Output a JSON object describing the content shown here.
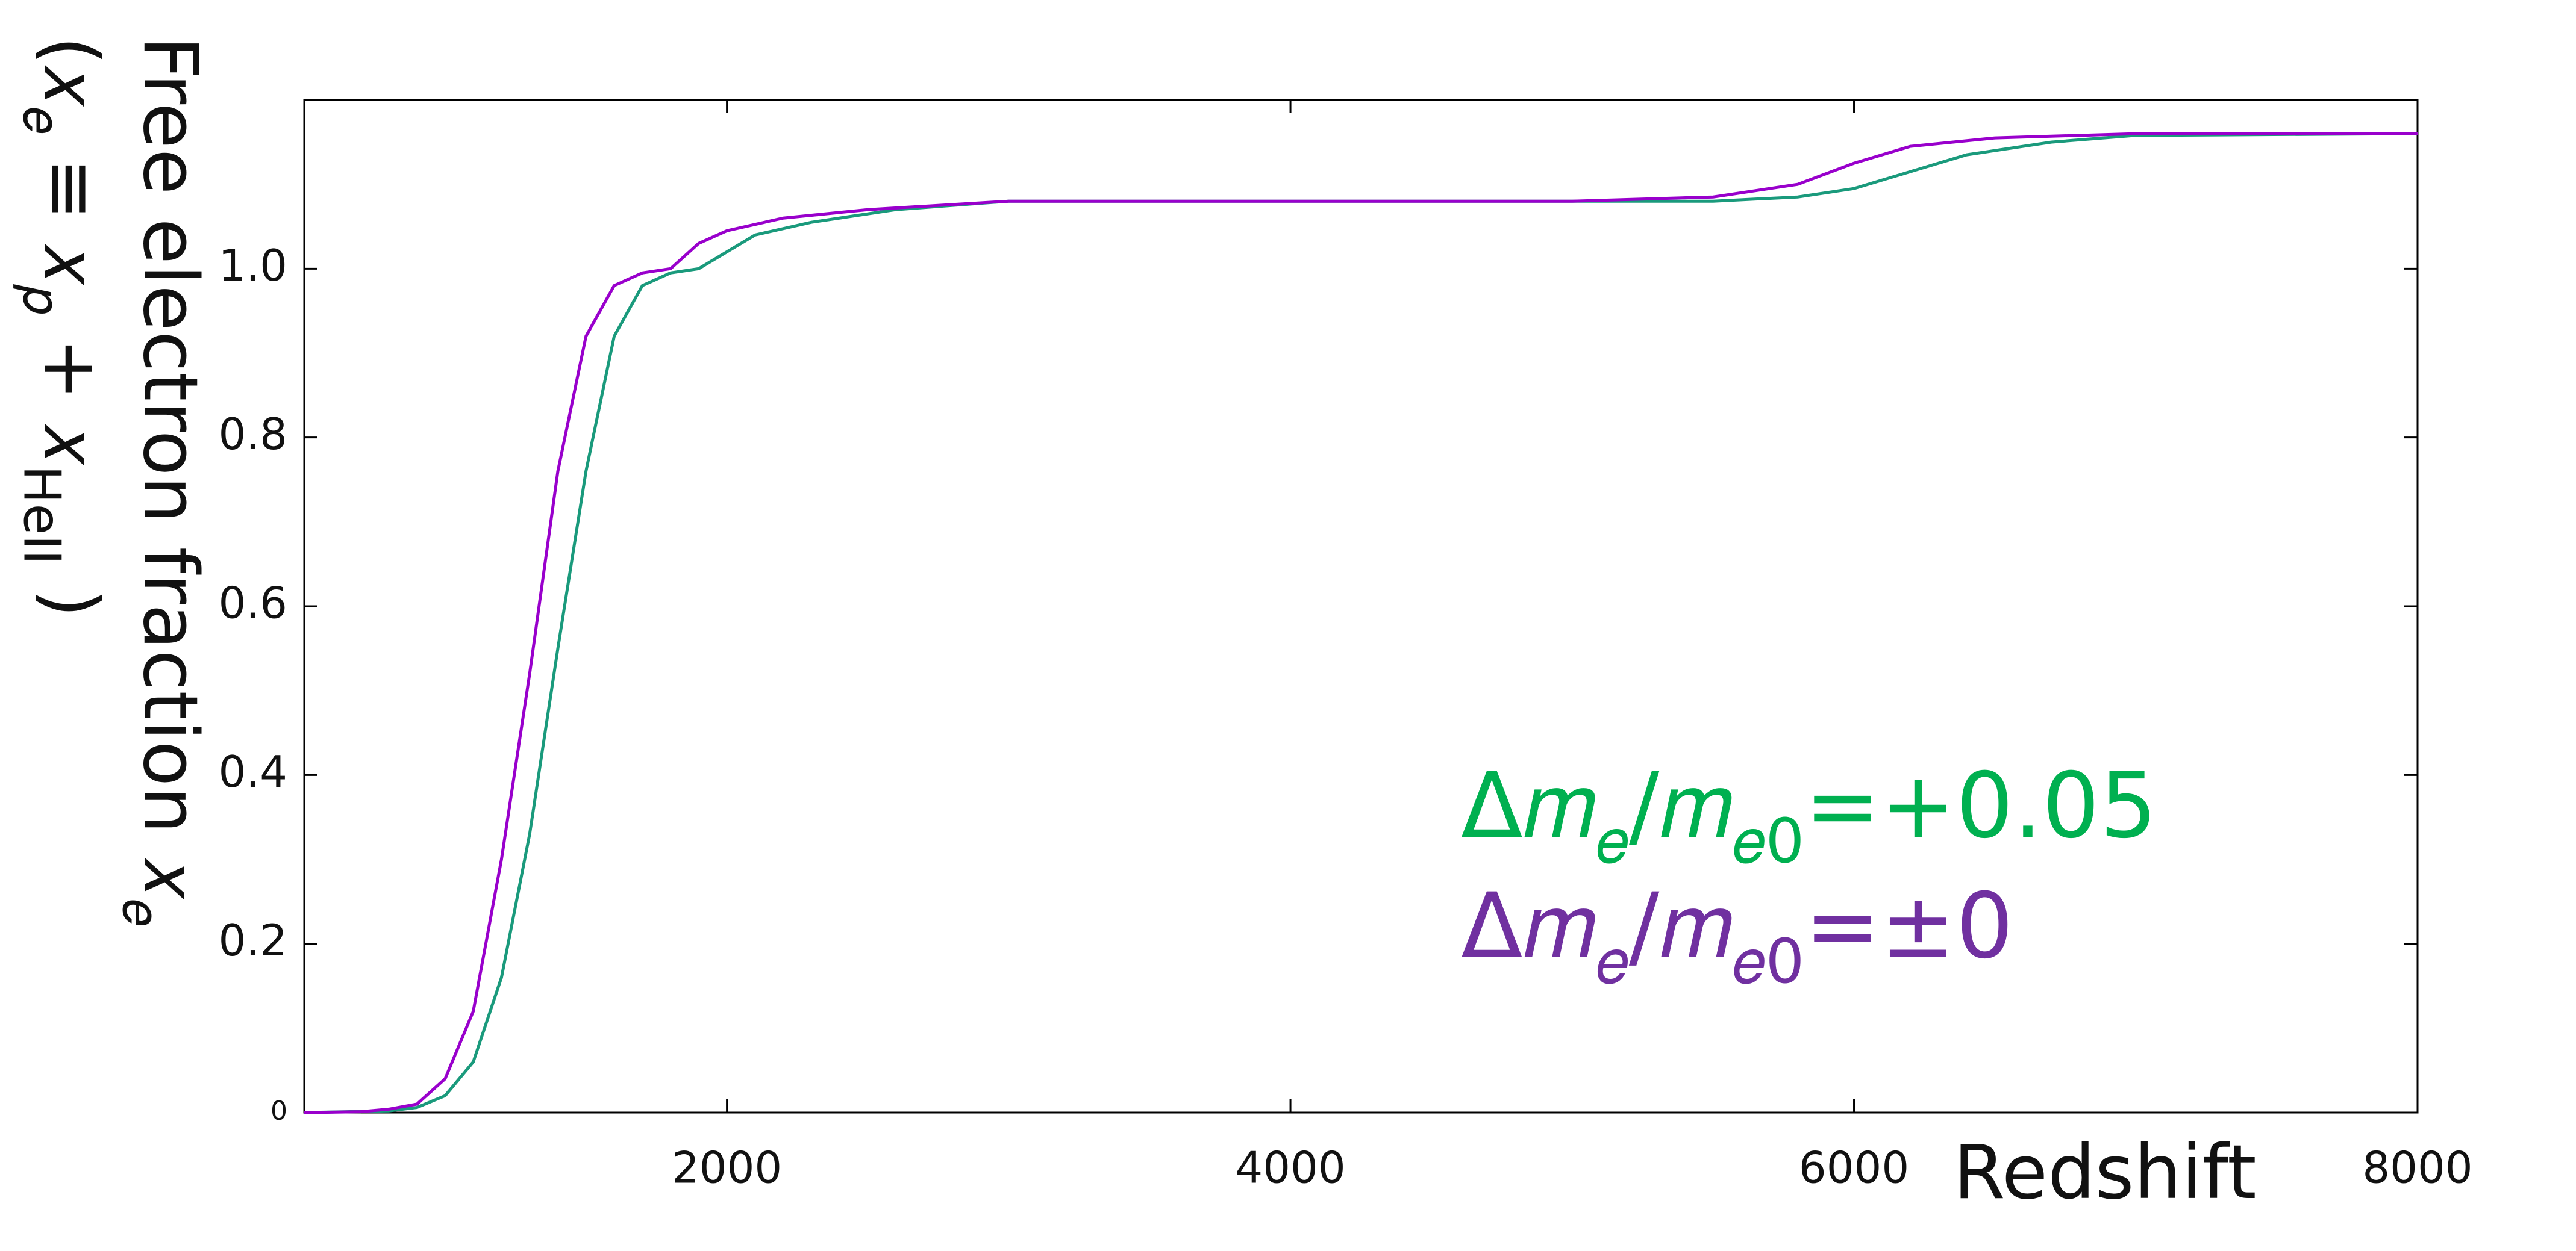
{
  "chart_data": {
    "type": "line",
    "xlabel": "Redshift",
    "ylabel": [
      [
        "Free electron fraction 𝑥",
        "𝑒"
      ],
      [
        "(𝑥",
        "𝑒",
        " ≡ 𝑥",
        "𝑝",
        " + 𝑥",
        "HeII",
        " )"
      ]
    ],
    "xlim": [
      500,
      8000
    ],
    "ylim": [
      0,
      1.2
    ],
    "xticks": [
      2000,
      4000,
      6000,
      8000
    ],
    "yticks": [
      0,
      0.2,
      0.4,
      0.6,
      0.8,
      {
        "value": 1,
        "label": "1.0"
      }
    ],
    "grid": false,
    "series": [
      {
        "name": [
          "Δ𝑚",
          "𝑒",
          "/𝑚",
          "𝑒0",
          "=+0.05"
        ],
        "color": "#1a9a7c",
        "label_color": "#00b050",
        "x": [
          500,
          800,
          900,
          1000,
          1100,
          1200,
          1300,
          1400,
          1500,
          1600,
          1700,
          1800,
          1900,
          2000,
          2100,
          2300,
          2600,
          3000,
          5500,
          5800,
          6000,
          6200,
          6400,
          6700,
          7000,
          8000
        ],
        "values": [
          0,
          0.002,
          0.006,
          0.02,
          0.06,
          0.16,
          0.33,
          0.55,
          0.76,
          0.92,
          0.98,
          0.995,
          1.0,
          1.02,
          1.04,
          1.055,
          1.07,
          1.08,
          1.08,
          1.085,
          1.095,
          1.115,
          1.135,
          1.15,
          1.158,
          1.16
        ]
      },
      {
        "name": [
          "Δ𝑚",
          "𝑒",
          "/𝑚",
          "𝑒0",
          "=±0"
        ],
        "color": "#9900cc",
        "label_color": "#7030a0",
        "x": [
          500,
          700,
          800,
          900,
          1000,
          1100,
          1200,
          1300,
          1400,
          1500,
          1600,
          1700,
          1800,
          1900,
          2000,
          2200,
          2500,
          3000,
          5000,
          5500,
          5800,
          6000,
          6200,
          6500,
          7000,
          8000
        ],
        "values": [
          0,
          0.001,
          0.004,
          0.01,
          0.04,
          0.12,
          0.3,
          0.52,
          0.76,
          0.92,
          0.98,
          0.995,
          1.0,
          1.03,
          1.045,
          1.06,
          1.07,
          1.08,
          1.08,
          1.085,
          1.1,
          1.125,
          1.145,
          1.155,
          1.16,
          1.16
        ]
      }
    ]
  }
}
